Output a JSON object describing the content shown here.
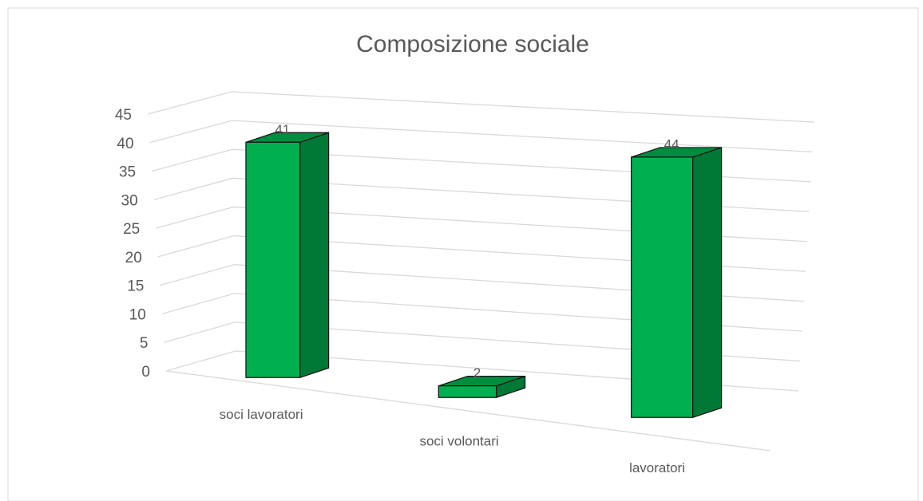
{
  "chart_data": {
    "type": "bar3d",
    "title": "Composizione sociale",
    "categories": [
      "soci lavoratori",
      "soci volontari",
      "lavoratori"
    ],
    "values": [
      41,
      2,
      44
    ],
    "color": "#00b050",
    "ylim": [
      0,
      45
    ],
    "yticks": [
      0,
      5,
      10,
      15,
      20,
      25,
      30,
      35,
      40,
      45
    ],
    "grid": true
  }
}
